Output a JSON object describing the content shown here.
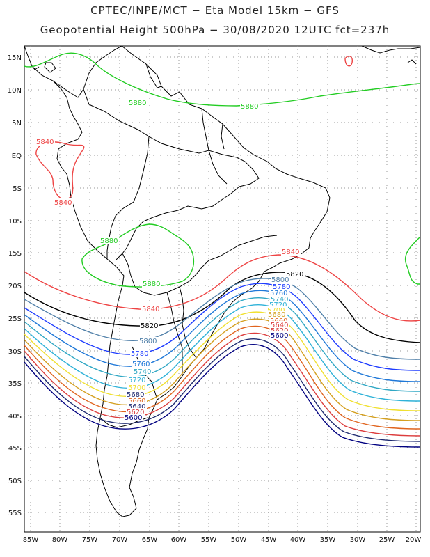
{
  "title": {
    "line1": "CPTEC/INPE/MCT  −   Eta Model 15km  −  GFS",
    "line2": "Geopotential Height 500hPa  −  30/08/2020 12UTC fct=237h"
  },
  "lat_labels": [
    "15N",
    "10N",
    "5N",
    "EQ",
    "5S",
    "10S",
    "15S",
    "20S",
    "25S",
    "30S",
    "35S",
    "40S",
    "45S",
    "50S",
    "55S"
  ],
  "lon_labels": [
    "85W",
    "80W",
    "75W",
    "70W",
    "65W",
    "60W",
    "55W",
    "50W",
    "45W",
    "40W",
    "35W",
    "30W",
    "25W",
    "20W"
  ],
  "contour_labels": {
    "green_5880": "5880",
    "red_5840": "5840",
    "black_5820": "5820",
    "c5800": "5800",
    "c5780": "5780",
    "c5760": "5760",
    "c5740": "5740",
    "c5720": "5720",
    "c5700": "5700",
    "c5680": "5680",
    "c5660": "5660",
    "c5640": "5640",
    "c5620": "5620",
    "c5600": "5600"
  },
  "colors": {
    "c5880": "#22cc22",
    "c5840": "#ee4444",
    "c5820": "#000000",
    "c5800": "#4f7fa8",
    "c5780": "#1e3cff",
    "c5760": "#1f78d8",
    "c5740": "#2fa7c4",
    "c5720": "#2fb2d8",
    "c5700": "#f0e030",
    "c5680": "#d4a020",
    "c5660": "#e0641e",
    "c5640": "#dc3c3c",
    "c5620": "#1e2a70",
    "c5600": "#000080"
  }
}
